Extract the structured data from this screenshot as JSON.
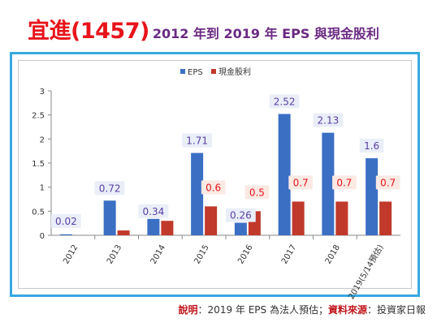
{
  "header": {
    "title_main": "宜進(1457)",
    "title_sub": "2012 年到 2019 年 EPS 與現金股利"
  },
  "footnote": {
    "note_key": "說明",
    "note_text": "：2019 年 EPS 為法人預估；",
    "source_key": "資料來源",
    "source_text": "：投資家日報"
  },
  "colors": {
    "eps": "#3b6fc4",
    "dividend": "#c0392b",
    "eps_label": "#5b3ea3",
    "dividend_label": "#e8141b",
    "frame": "#36a9e0"
  },
  "chart_data": {
    "type": "bar",
    "categories": [
      "2012",
      "2013",
      "2014",
      "2015",
      "2016",
      "2017",
      "2018",
      "2019(5/14預估)"
    ],
    "series": [
      {
        "name": "EPS",
        "values": [
          0.02,
          0.72,
          0.34,
          1.71,
          0.26,
          2.52,
          2.13,
          1.6
        ]
      },
      {
        "name": "現金股利",
        "values": [
          0,
          0.1,
          0.3,
          0.6,
          0.5,
          0.7,
          0.7,
          0.7
        ]
      }
    ],
    "eps_labels": [
      "0.02",
      "0.72",
      "0.34",
      "1.71",
      "0.26",
      "2.52",
      "2.13",
      "1.6"
    ],
    "dividend_labels": [
      "",
      "",
      "",
      "0.6",
      "0.5",
      "0.7",
      "0.7",
      "0.7"
    ],
    "yticks": [
      "0",
      "0.5",
      "1",
      "1.5",
      "2",
      "2.5",
      "3"
    ],
    "ylim": [
      0,
      3
    ],
    "legend_position": "top",
    "grid": false
  }
}
